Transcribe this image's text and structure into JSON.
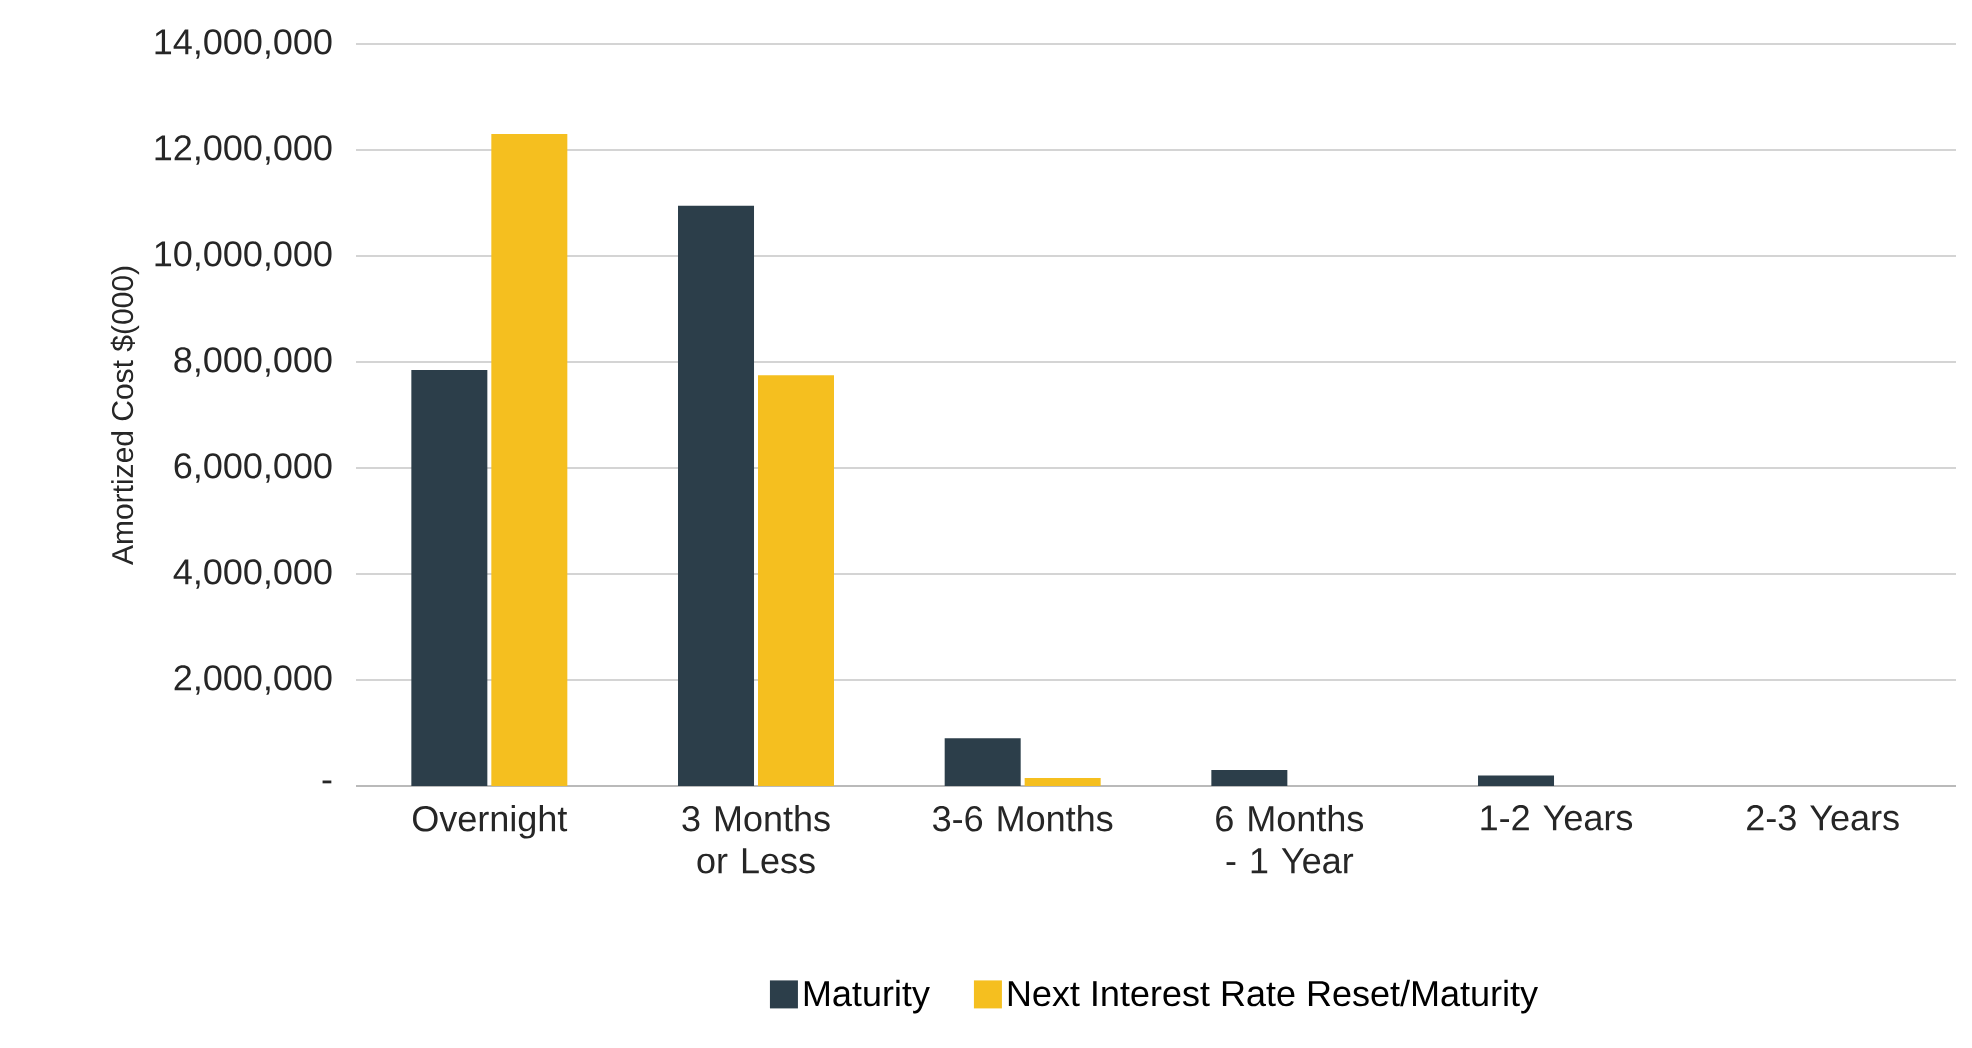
{
  "chart_data": {
    "type": "bar",
    "ylabel": "Amortized Cost $(000)",
    "categories": [
      "Overnight",
      "3 Months or Less",
      "3-6 Months",
      "6 Months - 1 Year",
      "1-2 Years",
      "2-3 Years"
    ],
    "series": [
      {
        "name": "Maturity",
        "color": "#2c3e4a",
        "values": [
          7850000,
          10950000,
          900000,
          300000,
          200000,
          0
        ]
      },
      {
        "name": "Next Interest Rate Reset/Maturity",
        "color": "#f5bf1f",
        "values": [
          12300000,
          7750000,
          150000,
          0,
          0,
          0
        ]
      }
    ],
    "ylim": [
      0,
      14000000
    ],
    "yticks": [
      {
        "value": 0,
        "label": "-"
      },
      {
        "value": 2000000,
        "label": "2,000,000"
      },
      {
        "value": 4000000,
        "label": "4,000,000"
      },
      {
        "value": 6000000,
        "label": "6,000,000"
      },
      {
        "value": 8000000,
        "label": "8,000,000"
      },
      {
        "value": 10000000,
        "label": "10,000,000"
      },
      {
        "value": 12000000,
        "label": "12,000,000"
      },
      {
        "value": 14000000,
        "label": "14,000,000"
      }
    ],
    "grid": "y",
    "legend": "bottom"
  }
}
